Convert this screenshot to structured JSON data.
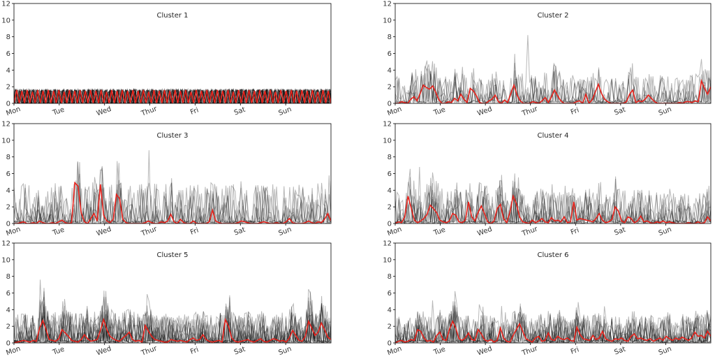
{
  "chart_data": [
    {
      "type": "line",
      "title": "Cluster 1",
      "ylim": [
        0,
        12
      ],
      "y_ticks": [
        0,
        2,
        4,
        6,
        8,
        10,
        12
      ],
      "x_tick_labels": [
        "Mon",
        "Tue",
        "Wed",
        "Thur",
        "Fri",
        "Sat",
        "Sun"
      ],
      "pattern": "regular",
      "n_gray": 10,
      "red_values": [
        0,
        1.6,
        0,
        1.5,
        0,
        1.6,
        0,
        1.4,
        0,
        1.6,
        0,
        1.5,
        0,
        1.6,
        0,
        1.5,
        0,
        1.6,
        0,
        1.4,
        0,
        1.6,
        0,
        1.5,
        0,
        1.6,
        0,
        1.5,
        0,
        1.6,
        0,
        1.5,
        0,
        1.6,
        0,
        1.4,
        0,
        1.6,
        0,
        1.5,
        0,
        1.6,
        0,
        1.5,
        0,
        1.6,
        0,
        1.5,
        0,
        1.6,
        0,
        1.4,
        0,
        1.6,
        0,
        1.5,
        0,
        1.6,
        0,
        1.5,
        0,
        1.6,
        0,
        1.5,
        0,
        1.6,
        0,
        1.4,
        0,
        1.6,
        0,
        1.5,
        0,
        1.6,
        0,
        1.5,
        0,
        1.6,
        0,
        1.5,
        0,
        1.6,
        0,
        1.4,
        0,
        1.6,
        0,
        1.5,
        0,
        1.6,
        0,
        1.5,
        0,
        1.6,
        0,
        1.5,
        0,
        1.6,
        0,
        1.4,
        0,
        1.6,
        0,
        1.5,
        0,
        1.6,
        0,
        1.5,
        0,
        1.6,
        0,
        1.5,
        0,
        1.6,
        0,
        1.4,
        0,
        1.6,
        0,
        1.5,
        0
      ],
      "colors": {
        "individual": "#000000",
        "mean": "#e8221b"
      }
    },
    {
      "type": "line",
      "title": "Cluster 2",
      "ylim": [
        0,
        12
      ],
      "y_ticks": [
        0,
        2,
        4,
        6,
        8,
        10,
        12
      ],
      "x_tick_labels": [
        "Mon",
        "Tue",
        "Wed",
        "Thur",
        "Fri",
        "Sat",
        "Sun"
      ],
      "pattern": "spiky",
      "n_gray": 8,
      "gray_scale": 1.7,
      "gray_max": 8.2,
      "red_values": [
        0,
        0,
        0.2,
        0.1,
        0,
        0.5,
        0.8,
        0.3,
        1.2,
        2.2,
        1.9,
        1.7,
        2.1,
        1.3,
        0.4,
        0,
        0,
        0.2,
        0.1,
        0.6,
        0.3,
        1.1,
        0.5,
        0.1,
        1.8,
        1.5,
        0.9,
        0.1,
        0,
        0,
        0.3,
        0.5,
        1.0,
        0.2,
        0,
        0.4,
        0.1,
        1.2,
        2.2,
        1.0,
        0.3,
        0,
        0,
        0,
        0.2,
        0.1,
        0,
        0.3,
        0.7,
        0.1,
        0.8,
        1.6,
        0.9,
        0.3,
        0,
        0,
        0,
        0,
        0.2,
        0.3,
        0,
        1.1,
        0,
        0.4,
        1.3,
        2.3,
        1.2,
        0.5,
        0.2,
        0,
        0,
        0,
        0,
        0,
        0.2,
        1.1,
        1.6,
        0.1,
        0.3,
        0.2,
        0.5,
        1.0,
        0.6,
        0.2,
        0,
        0,
        0,
        0,
        0,
        0,
        0,
        0.1,
        0,
        0.2,
        0.2,
        0.1,
        0.3,
        0.2,
        2.7,
        1.8,
        1.1,
        2.0
      ],
      "colors": {
        "individual": "#000000",
        "mean": "#e8221b"
      }
    },
    {
      "type": "line",
      "title": "Cluster 3",
      "ylim": [
        0,
        12
      ],
      "y_ticks": [
        0,
        2,
        4,
        6,
        8,
        10,
        12
      ],
      "x_tick_labels": [
        "Mon",
        "Tue",
        "Wed",
        "Thur",
        "Fri",
        "Sat",
        "Sun"
      ],
      "pattern": "spiky",
      "n_gray": 9,
      "gray_scale": 2.4,
      "gray_max": 8.8,
      "red_values": [
        0,
        0,
        0.1,
        0.2,
        0,
        0,
        0.1,
        0,
        0.3,
        0.1,
        0,
        0,
        0.1,
        0,
        0.2,
        0.4,
        0.1,
        0,
        0.1,
        4.9,
        4.5,
        1.3,
        0.2,
        0,
        0.6,
        1.2,
        0.3,
        4.7,
        1.0,
        0.3,
        0.1,
        0.5,
        3.5,
        3.0,
        0.5,
        0.1,
        0,
        0,
        0,
        0,
        0,
        0.1,
        0.3,
        0.1,
        0,
        0,
        0.2,
        0.1,
        0.3,
        1.1,
        0.2,
        0,
        0.5,
        0.1,
        0,
        0,
        0.3,
        0,
        0,
        0,
        0,
        0.2,
        1.6,
        0.3,
        0.1,
        0,
        0,
        0,
        0,
        0,
        0.1,
        0.3,
        0.2,
        0.1,
        0,
        0,
        0,
        0.1,
        0.2,
        0.1,
        0,
        0,
        0.1,
        0,
        0,
        0.2,
        0.6,
        0.1,
        0,
        0,
        0,
        0.1,
        0.3,
        0.1,
        0,
        0.2,
        0.1,
        0.5,
        1.2,
        0.3
      ],
      "colors": {
        "individual": "#000000",
        "mean": "#e8221b"
      }
    },
    {
      "type": "line",
      "title": "Cluster 4",
      "ylim": [
        0,
        12
      ],
      "y_ticks": [
        0,
        2,
        4,
        6,
        8,
        10,
        12
      ],
      "x_tick_labels": [
        "Mon",
        "Tue",
        "Wed",
        "Thur",
        "Fri",
        "Sat",
        "Sun"
      ],
      "pattern": "spiky",
      "n_gray": 10,
      "gray_scale": 2.0,
      "gray_max": 6.8,
      "red_values": [
        0,
        0.2,
        0.1,
        0.8,
        3.3,
        1.9,
        0.4,
        0.1,
        0.3,
        0.6,
        1.1,
        2.2,
        1.8,
        1.3,
        0.4,
        0.2,
        0.1,
        0.3,
        1.2,
        1.0,
        0.2,
        0.1,
        0.4,
        2.6,
        0.8,
        0.3,
        1.3,
        2.1,
        1.2,
        0.2,
        0,
        0.3,
        1.8,
        2.3,
        0.6,
        0.1,
        1.4,
        3.3,
        2.4,
        0.8,
        0.2,
        0.1,
        0,
        0.4,
        0.1,
        0.3,
        0.6,
        0.2,
        0.1,
        0.7,
        0.3,
        0.4,
        0.2,
        0.8,
        0.1,
        0.2,
        2.6,
        0.4,
        0.6,
        0.5,
        0.4,
        0.3,
        0.2,
        0.6,
        1.2,
        0.4,
        0.1,
        0.2,
        0.5,
        2.0,
        1.5,
        0.3,
        0.1,
        0.8,
        0.6,
        0.1,
        0.3,
        0.9,
        0.2,
        0.3,
        0.1,
        0,
        0.2,
        0.1,
        0.3,
        0.1,
        0.2,
        0.1,
        0,
        0,
        0,
        0,
        0.1,
        0,
        0,
        0.2,
        0,
        0.1,
        0.8,
        0.3
      ],
      "colors": {
        "individual": "#000000",
        "mean": "#e8221b"
      }
    },
    {
      "type": "line",
      "title": "Cluster 5",
      "ylim": [
        0,
        12
      ],
      "y_ticks": [
        0,
        2,
        4,
        6,
        8,
        10,
        12
      ],
      "x_tick_labels": [
        "Mon",
        "Tue",
        "Wed",
        "Thur",
        "Fri",
        "Sat",
        "Sun"
      ],
      "pattern": "dense",
      "n_gray": 16,
      "gray_scale": 1.7,
      "gray_max": 7.6,
      "red_values": [
        0,
        0.1,
        0.2,
        0.3,
        0.2,
        0.1,
        0.3,
        0.2,
        1.8,
        2.7,
        1.6,
        0.4,
        0.3,
        0.2,
        0.5,
        1.6,
        1.2,
        0.8,
        0.3,
        0.2,
        0.1,
        0.4,
        1.0,
        0.5,
        0.2,
        0.3,
        0.4,
        1.5,
        2.8,
        1.6,
        0.8,
        0.5,
        0.3,
        0.2,
        0.6,
        0.9,
        1.3,
        0.4,
        0.2,
        0.3,
        0.1,
        2.1,
        1.4,
        0.8,
        0.4,
        0.3,
        0.2,
        0.1,
        0.1,
        0.4,
        0.3,
        0.2,
        0.3,
        0.2,
        0.1,
        0.4,
        0.6,
        0.3,
        0.4,
        1.0,
        0.4,
        0.2,
        0.1,
        0.2,
        0.3,
        0.1,
        2.8,
        2.0,
        0.6,
        0.2,
        0.1,
        0.2,
        0.3,
        0.4,
        0.2,
        0.1,
        0.3,
        0.5,
        0.2,
        0.1,
        0.3,
        0.5,
        0.4,
        0.2,
        0.3,
        0.1,
        0.6,
        1.5,
        0.9,
        0.3,
        0.2,
        0.8,
        2.6,
        1.8,
        0.9,
        1.3,
        2.4,
        1.6,
        0.7,
        0.4
      ],
      "colors": {
        "individual": "#000000",
        "mean": "#e8221b"
      }
    },
    {
      "type": "line",
      "title": "Cluster 6",
      "ylim": [
        0,
        12
      ],
      "y_ticks": [
        0,
        2,
        4,
        6,
        8,
        10,
        12
      ],
      "x_tick_labels": [
        "Mon",
        "Tue",
        "Wed",
        "Thur",
        "Fri",
        "Sat",
        "Sun"
      ],
      "pattern": "dense",
      "n_gray": 14,
      "gray_scale": 1.5,
      "gray_max": 5.1,
      "red_values": [
        0,
        0.2,
        0.3,
        0.1,
        0.2,
        0.4,
        0.3,
        1.6,
        1.4,
        0.6,
        0.2,
        0.3,
        0.1,
        0.9,
        1.3,
        0.4,
        0.3,
        1.6,
        2.6,
        1.8,
        0.5,
        0.3,
        0.6,
        1.2,
        0.4,
        0.3,
        1.6,
        1.1,
        0.4,
        0.2,
        0.4,
        0.1,
        0.3,
        1.8,
        0.6,
        0.2,
        0.1,
        0.9,
        1.6,
        2.3,
        1.4,
        0.5,
        0.3,
        0.1,
        0.6,
        0.8,
        0.2,
        0.3,
        1.2,
        0.4,
        0.3,
        0.8,
        0.5,
        0.4,
        0.6,
        0.3,
        0.2,
        1.9,
        1.0,
        0.5,
        0.4,
        0.3,
        0.9,
        0.4,
        0.6,
        1.4,
        0.5,
        0.3,
        0.2,
        0.5,
        0.4,
        0.6,
        0.3,
        0.2,
        0.8,
        1.1,
        0.5,
        0.6,
        0.4,
        0.3,
        0.5,
        0.2,
        0.4,
        0.6,
        0.3,
        0.8,
        0.5,
        0.3,
        0.6,
        0.4,
        0.7,
        0.5,
        0.3,
        0.6,
        1.3,
        0.8,
        0.9,
        0.6,
        1.4,
        0.8
      ],
      "colors": {
        "individual": "#000000",
        "mean": "#e8221b"
      }
    }
  ]
}
